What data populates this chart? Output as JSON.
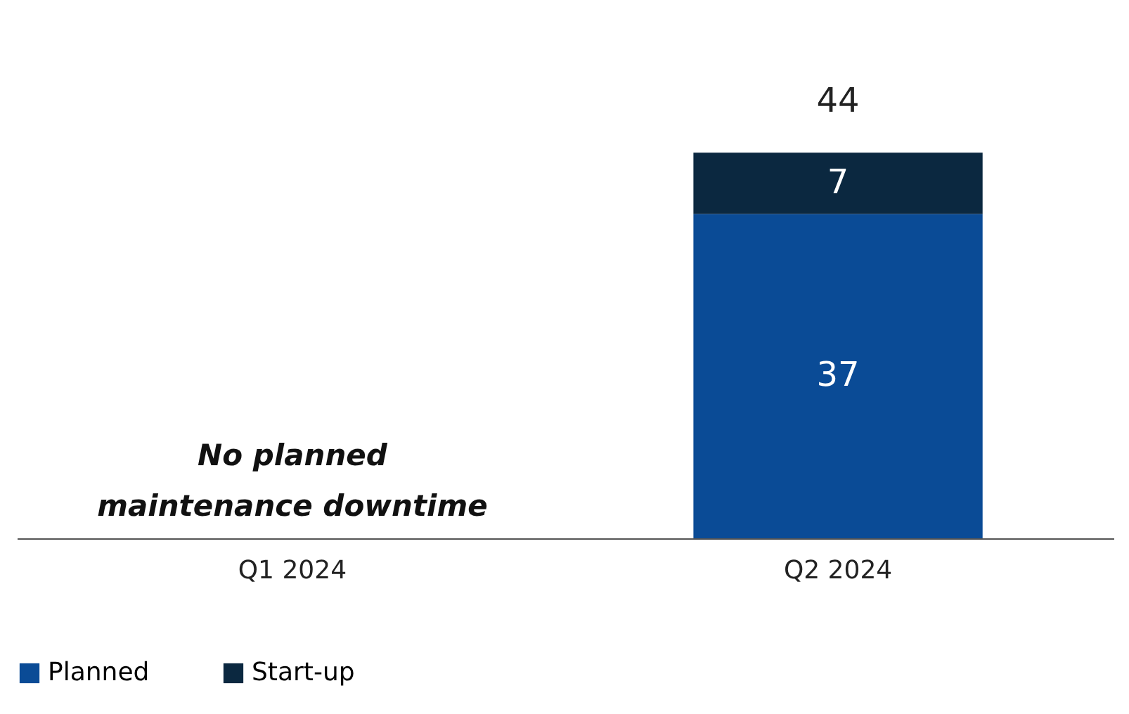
{
  "chart_data": {
    "type": "bar",
    "stacked": true,
    "categories": [
      "Q1 2024",
      "Q2 2024"
    ],
    "series": [
      {
        "name": "Planned",
        "color": "#0a4b96",
        "values": [
          null,
          37
        ]
      },
      {
        "name": "Start-up",
        "color": "#0b2840",
        "values": [
          null,
          7
        ]
      }
    ],
    "data_labels": true,
    "totals": [
      null,
      "44"
    ],
    "annotations": [
      "No planned maintenance downtime"
    ],
    "legend": "bottom",
    "grid": false,
    "tick_labels": "x"
  }
}
